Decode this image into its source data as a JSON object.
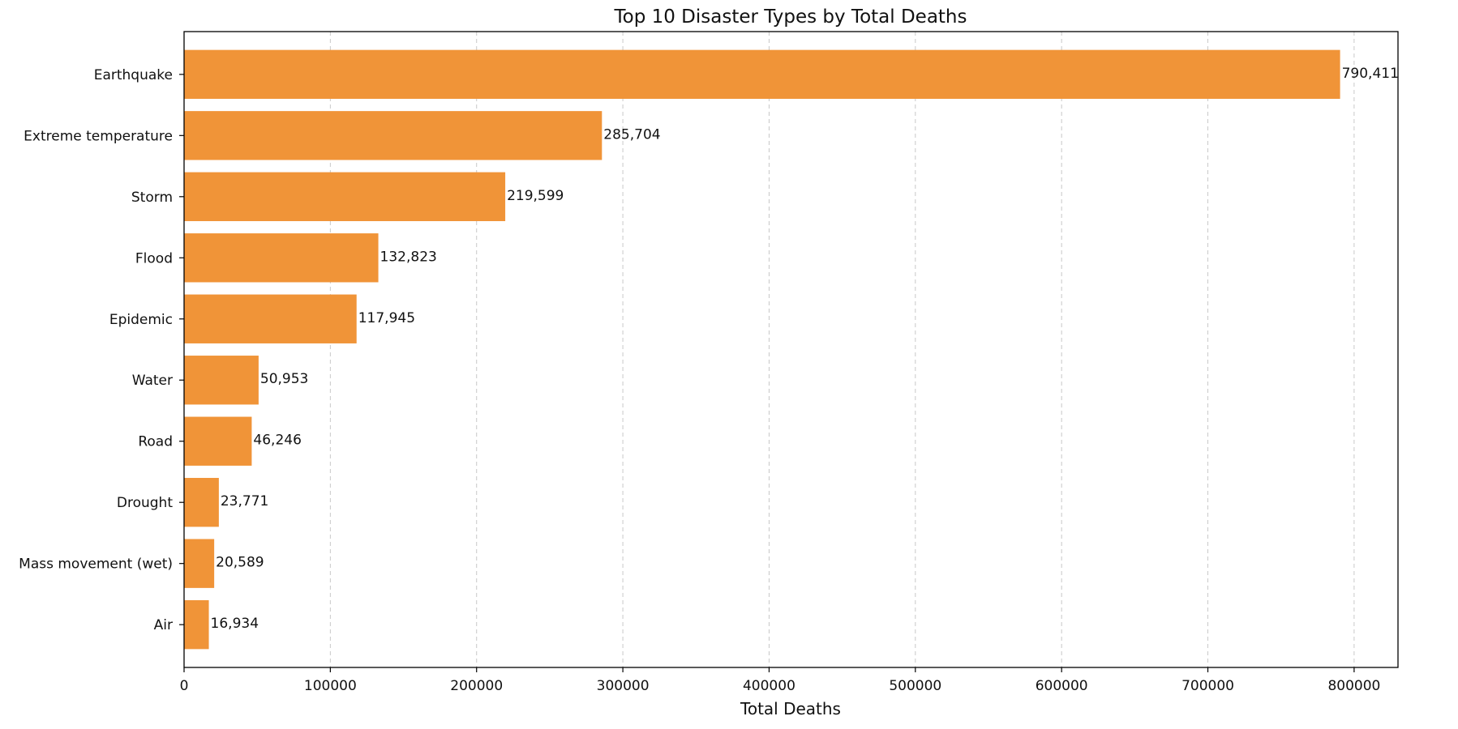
{
  "chart_data": {
    "type": "bar",
    "orientation": "horizontal",
    "title": "Top 10 Disaster Types by Total Deaths",
    "xlabel": "Total Deaths",
    "ylabel": "",
    "categories": [
      "Earthquake",
      "Extreme temperature",
      "Storm",
      "Flood",
      "Epidemic",
      "Water",
      "Road",
      "Drought",
      "Mass movement (wet)",
      "Air"
    ],
    "values": [
      790411,
      285704,
      219599,
      132823,
      117945,
      50953,
      46246,
      23771,
      20589,
      16934
    ],
    "value_labels": [
      "790,411",
      "285,704",
      "219,599",
      "132,823",
      "117,945",
      "50,953",
      "46,246",
      "23,771",
      "20,589",
      "16,934"
    ],
    "xlim": [
      0,
      830000
    ],
    "xticks": [
      0,
      100000,
      200000,
      300000,
      400000,
      500000,
      600000,
      700000,
      800000
    ],
    "xtick_labels": [
      "0",
      "100000",
      "200000",
      "300000",
      "400000",
      "500000",
      "600000",
      "700000",
      "800000"
    ],
    "grid": "x-dashed",
    "bar_color": "#f09438",
    "grid_color": "#c8c8c8"
  }
}
